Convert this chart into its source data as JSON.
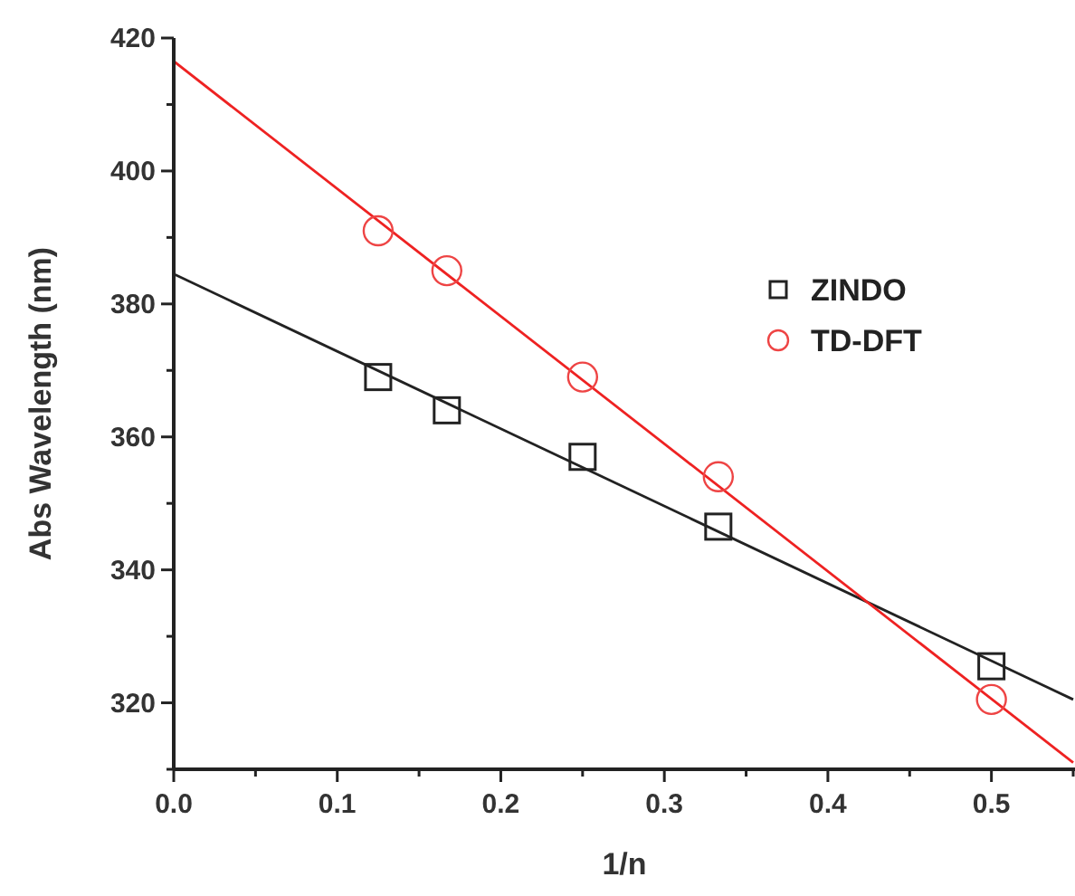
{
  "chart_data": {
    "type": "scatter",
    "xlabel": "1/n",
    "ylabel": "Abs Wavelength (nm)",
    "xlim": [
      0,
      0.55
    ],
    "ylim": [
      310,
      420
    ],
    "xticks": [
      {
        "value": 0,
        "label": "0.0"
      },
      {
        "value": 0.05,
        "label": null
      },
      {
        "value": 0.1,
        "label": "0.1"
      },
      {
        "value": 0.15,
        "label": null
      },
      {
        "value": 0.2,
        "label": "0.2"
      },
      {
        "value": 0.25,
        "label": null
      },
      {
        "value": 0.3,
        "label": "0.3"
      },
      {
        "value": 0.35,
        "label": null
      },
      {
        "value": 0.4,
        "label": "0.4"
      },
      {
        "value": 0.45,
        "label": null
      },
      {
        "value": 0.5,
        "label": "0.5"
      },
      {
        "value": 0.55,
        "label": null
      }
    ],
    "yticks": [
      {
        "value": 310,
        "label": null
      },
      320,
      {
        "value": 330,
        "label": null
      },
      340,
      {
        "value": 350,
        "label": null
      },
      360,
      {
        "value": 370,
        "label": null
      },
      380,
      {
        "value": 390,
        "label": null
      },
      400,
      {
        "value": 410,
        "label": null
      },
      420
    ],
    "grid": false,
    "legend": "top right",
    "series": [
      {
        "type": "line",
        "color": "#222222",
        "x": [
          0,
          0.55
        ],
        "values": [
          384.5,
          320.5
        ],
        "marker": "none"
      },
      {
        "type": "line",
        "color": "#ee2222",
        "x": [
          0,
          0.55
        ],
        "values": [
          416.5,
          311
        ],
        "marker": "none"
      },
      {
        "name": "ZINDO",
        "color": "#222222",
        "marker": "square",
        "x": [
          0.125,
          0.167,
          0.25,
          0.333,
          0.5
        ],
        "values": [
          369,
          364,
          357,
          346.5,
          325.5
        ]
      },
      {
        "name": "TD-DFT",
        "color": "#ee4444",
        "marker": "circle",
        "x": [
          0.125,
          0.167,
          0.25,
          0.333,
          0.5
        ],
        "values": [
          391,
          385,
          369,
          354,
          320.5
        ]
      }
    ]
  }
}
